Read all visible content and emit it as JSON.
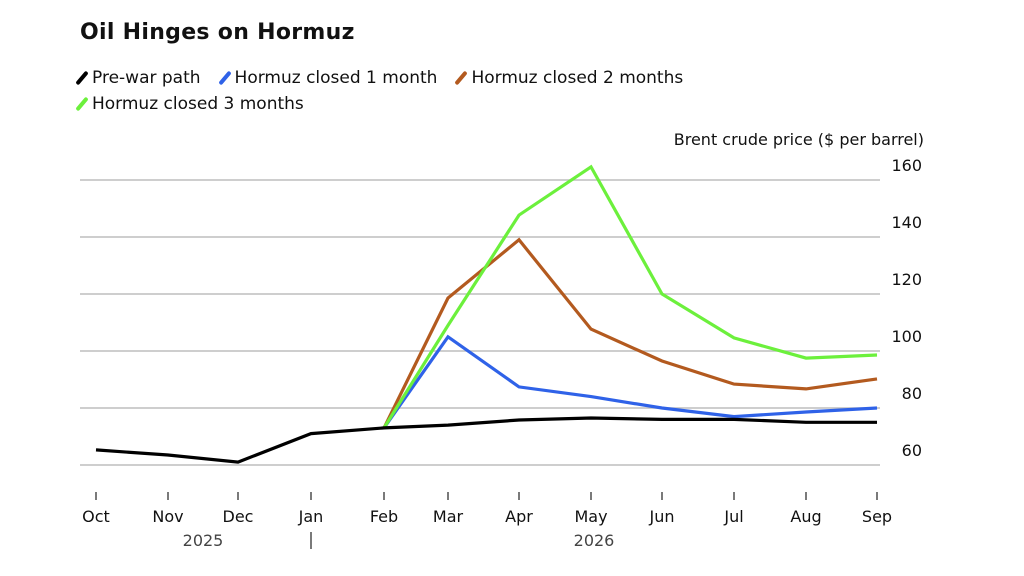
{
  "chart_data": {
    "type": "line",
    "title": "Oil Hinges on Hormuz",
    "ylabel": "Brent crude price ($ per barrel)",
    "xlabel": "",
    "x": [
      "Oct",
      "Nov",
      "Dec",
      "Jan",
      "Feb",
      "Mar",
      "Apr",
      "May",
      "Jun",
      "Jul",
      "Aug",
      "Sep"
    ],
    "year_labels": [
      "2025",
      "2026"
    ],
    "ylim": [
      55,
      165
    ],
    "yticks": [
      60,
      80,
      100,
      120,
      140,
      160
    ],
    "grid": true,
    "legend_position": "top-left",
    "series": [
      {
        "name": "Pre-war path",
        "color": "#000000",
        "values": [
          65.3,
          63.5,
          61,
          71,
          73,
          74,
          75.8,
          76.5,
          76,
          76,
          75,
          75
        ]
      },
      {
        "name": "Hormuz closed 1 month",
        "color": "#2f62e8",
        "values": [
          null,
          null,
          null,
          null,
          73,
          105,
          87.4,
          84,
          80,
          77,
          78.6,
          80
        ]
      },
      {
        "name": "Hormuz closed 2 months",
        "color": "#b35a1f",
        "values": [
          null,
          null,
          null,
          null,
          73,
          118.6,
          139,
          107.7,
          96.5,
          88.4,
          86.7,
          90.2
        ]
      },
      {
        "name": "Hormuz closed 3 months",
        "color": "#6cf03c",
        "values": [
          null,
          null,
          null,
          null,
          73,
          109,
          147.7,
          164.6,
          120,
          104.6,
          97.5,
          98.6
        ]
      }
    ]
  }
}
